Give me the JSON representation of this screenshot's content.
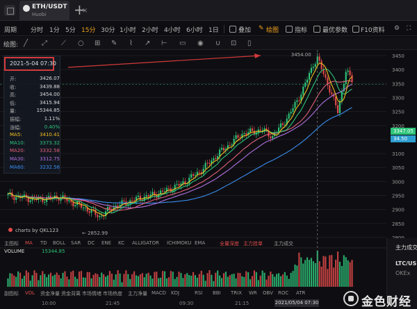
{
  "tab": {
    "pair": "ETH/USDT",
    "exchange": "Huobi",
    "close": "×",
    "add": "+"
  },
  "toolbar": {
    "periods": [
      "周期",
      "分时",
      "1分",
      "5分",
      "15分",
      "30分",
      "1小时",
      "2小时",
      "4小时",
      "6小时",
      "1日"
    ],
    "active_period": "15分",
    "overlay": "叠加",
    "draw": "绘图",
    "indicator": "指标",
    "best_params": "最优参数",
    "f10": "F10资料"
  },
  "drawbar": {
    "label": "绘图:"
  },
  "info": {
    "date": "2021-5-04 07:30",
    "rows": [
      {
        "k": "开:",
        "v": "3426.07",
        "color": "#dddddd"
      },
      {
        "k": "收:",
        "v": "3439.88",
        "color": "#dddddd"
      },
      {
        "k": "高:",
        "v": "3454.00",
        "color": "#dddddd"
      },
      {
        "k": "低:",
        "v": "3415.94",
        "color": "#dddddd"
      },
      {
        "k": "量:",
        "v": "15344.85",
        "color": "#dddddd"
      },
      {
        "k": "振幅:",
        "v": "1.11%",
        "color": "#dddddd"
      },
      {
        "k": "涨幅:",
        "v": "0.40%",
        "color": "#2ec47a"
      },
      {
        "k": "MA5:",
        "v": "3410.41",
        "color": "#f0c020",
        "kc": "#f0c020"
      },
      {
        "k": "MA10:",
        "v": "3373.32",
        "color": "#2ec47a",
        "kc": "#2ec47a"
      },
      {
        "k": "MA20:",
        "v": "3332.58",
        "color": "#e0607a",
        "kc": "#e0607a"
      },
      {
        "k": "MA30:",
        "v": "3312.75",
        "color": "#b070e0",
        "kc": "#b070e0"
      },
      {
        "k": "MA60:",
        "v": "3232.56",
        "color": "#3b8df0",
        "kc": "#3b8df0"
      }
    ]
  },
  "price_axis": [
    "3450",
    "3400",
    "3350",
    "3300",
    "3250",
    "3200",
    "3150",
    "3100",
    "3050",
    "3000",
    "2950",
    "2900",
    "2850",
    "2800"
  ],
  "price_tags": {
    "current": "3347.05",
    "last": "34.50"
  },
  "annotations": {
    "high": "3454.00",
    "low": "2852.99",
    "credit": "charts by QKL123"
  },
  "indicator_bar": [
    "主图标",
    "MA",
    "TD",
    "BOLL",
    "SAR",
    "DC",
    "ENE",
    "KC",
    "ALLIGATOR",
    "ICHIMOKU",
    "EMA",
    "全量深度",
    "主力挂单",
    "主力成交"
  ],
  "volume": {
    "label": "VOLUME",
    "value": "15344.85"
  },
  "bottom_indicators": [
    "副图标",
    "VOL",
    "资金净量",
    "资金背离",
    "市场情绪",
    "市场热度",
    "主力净量",
    "MACD",
    "KDJ",
    "RSI",
    "BBI",
    "TRIX",
    "WR",
    "OBV",
    "ROC",
    "ATR"
  ],
  "time_axis": [
    "10:00",
    "21:45",
    "09:30",
    "21:15"
  ],
  "crosshair_time": "2021/05/04 07:30",
  "side_panel": {
    "title": "主力成交",
    "pair": "LTC/USD",
    "exchange": "OKEx"
  },
  "watermark": {
    "text": "金色财经"
  },
  "colors": {
    "up": "#2ec47a",
    "down": "#e04a4a",
    "ma5": "#f0c020",
    "ma10": "#2ec47a",
    "ma20": "#e0607a",
    "ma30": "#b070e0",
    "ma60": "#3b8df0"
  }
}
